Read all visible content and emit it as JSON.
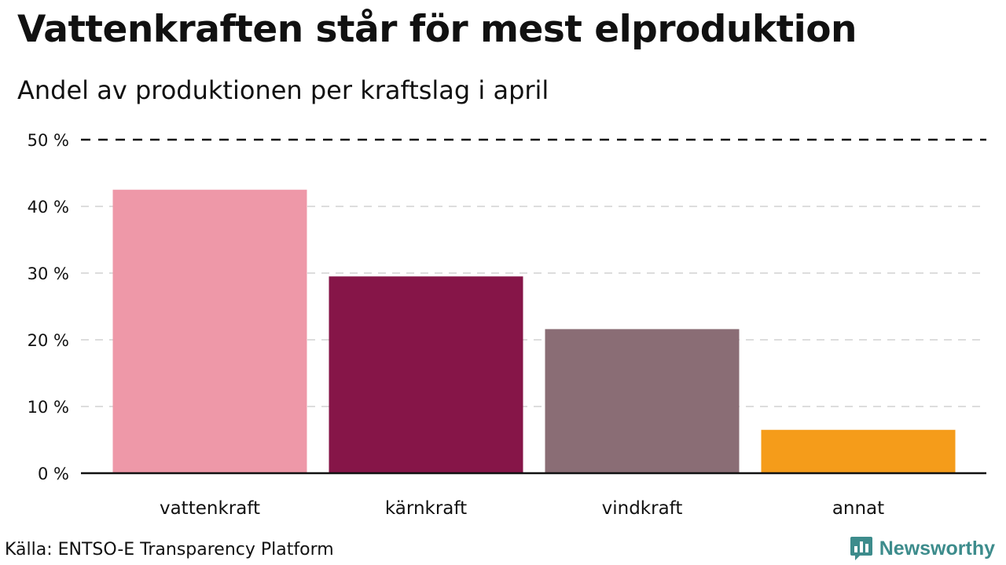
{
  "title": "Vattenkraften står för mest elproduktion",
  "subtitle": "Andel av produktionen per kraftslag i april",
  "source": "Källa: ENTSO-E Transparency Platform",
  "brand": {
    "name": "Newsworthy",
    "icon": "newsworthy-logo-icon",
    "color": "#3d8c8c"
  },
  "chart_data": {
    "type": "bar",
    "title": "Vattenkraften står för mest elproduktion",
    "subtitle": "Andel av produktionen per kraftslag i april",
    "xlabel": "",
    "ylabel": "",
    "categories": [
      "vattenkraft",
      "kärnkraft",
      "vindkraft",
      "annat"
    ],
    "values": [
      42.5,
      29.5,
      21.6,
      6.5
    ],
    "colors": [
      "#ee98a8",
      "#861548",
      "#8a6d75",
      "#f59c1a"
    ],
    "ylim": [
      0,
      50
    ],
    "yticks": [
      0,
      10,
      20,
      30,
      40,
      50
    ],
    "ytick_labels": [
      "0 %",
      "10 %",
      "20 %",
      "30 %",
      "40 %",
      "50 %"
    ],
    "grid": true,
    "legend": "none"
  }
}
